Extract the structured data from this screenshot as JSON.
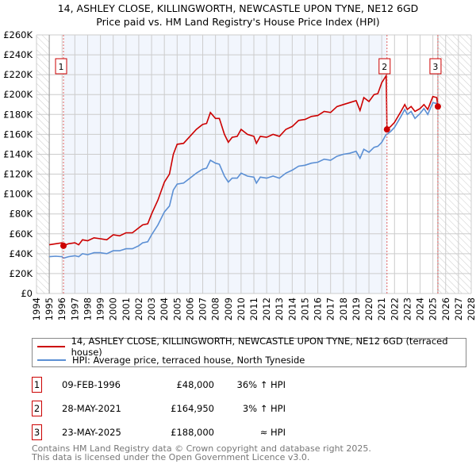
{
  "chart_data": {
    "type": "line",
    "title": "14, ASHLEY CLOSE, KILLINGWORTH, NEWCASTLE UPON TYNE, NE12 6GD",
    "subtitle": "Price paid vs. HM Land Registry's House Price Index (HPI)",
    "xlim": [
      1994,
      2028
    ],
    "ylim": [
      0,
      260000
    ],
    "x_ticks": [
      "1994",
      "1995",
      "1996",
      "1997",
      "1998",
      "1999",
      "2000",
      "2001",
      "2002",
      "2003",
      "2004",
      "2005",
      "2006",
      "2007",
      "2008",
      "2009",
      "2010",
      "2011",
      "2012",
      "2013",
      "2014",
      "2015",
      "2016",
      "2017",
      "2018",
      "2019",
      "2020",
      "2021",
      "2022",
      "2023",
      "2024",
      "2025",
      "2026",
      "2027",
      "2028"
    ],
    "y_ticks": [
      {
        "v": 0,
        "label": "£0"
      },
      {
        "v": 20000,
        "label": "£20K"
      },
      {
        "v": 40000,
        "label": "£40K"
      },
      {
        "v": 60000,
        "label": "£60K"
      },
      {
        "v": 80000,
        "label": "£80K"
      },
      {
        "v": 100000,
        "label": "£100K"
      },
      {
        "v": 120000,
        "label": "£120K"
      },
      {
        "v": 140000,
        "label": "£140K"
      },
      {
        "v": 160000,
        "label": "£160K"
      },
      {
        "v": 180000,
        "label": "£180K"
      },
      {
        "v": 200000,
        "label": "£200K"
      },
      {
        "v": 220000,
        "label": "£220K"
      },
      {
        "v": 240000,
        "label": "£240K"
      },
      {
        "v": 260000,
        "label": "£260K"
      }
    ],
    "grid": true,
    "series": [
      {
        "name": "14, ASHLEY CLOSE, KILLINGWORTH, NEWCASTLE UPON TYNE, NE12 6GD (terraced house)",
        "color": "#cc0000",
        "x": [
          1995,
          1995.5,
          1996,
          1996.11,
          1996.5,
          1997,
          1997.3,
          1997.6,
          1998,
          1998.5,
          1999,
          1999.5,
          2000,
          2000.5,
          2001,
          2001.5,
          2002,
          2002.3,
          2002.7,
          2003,
          2003.5,
          2004,
          2004.4,
          2004.7,
          2005,
          2005.5,
          2006,
          2006.5,
          2007,
          2007.3,
          2007.6,
          2008,
          2008.3,
          2008.7,
          2009,
          2009.3,
          2009.7,
          2010,
          2010.5,
          2011,
          2011.2,
          2011.5,
          2012,
          2012.5,
          2013,
          2013.5,
          2014,
          2014.5,
          2015,
          2015.5,
          2016,
          2016.5,
          2017,
          2017.5,
          2018,
          2018.5,
          2019,
          2019.3,
          2019.6,
          2020,
          2020.4,
          2020.7,
          2021,
          2021.35,
          2021.41,
          2021.7,
          2022,
          2022.5,
          2022.8,
          2023,
          2023.3,
          2023.6,
          2024,
          2024.3,
          2024.6,
          2025,
          2025.3,
          2025.39
        ],
        "y": [
          49000,
          50000,
          51000,
          48000,
          50000,
          51000,
          49000,
          54000,
          53000,
          56000,
          55000,
          54000,
          59000,
          58000,
          61000,
          61000,
          66000,
          69000,
          70000,
          80000,
          94000,
          112000,
          120000,
          140000,
          150000,
          151000,
          158000,
          165000,
          170000,
          171000,
          182000,
          176000,
          176000,
          160000,
          152000,
          157000,
          158000,
          165000,
          160000,
          158000,
          151000,
          158000,
          157000,
          160000,
          158000,
          165000,
          168000,
          174000,
          175000,
          178000,
          179000,
          183000,
          182000,
          188000,
          190000,
          192000,
          194000,
          184000,
          197000,
          193000,
          200000,
          201000,
          212000,
          219000,
          164950,
          168000,
          172000,
          183000,
          190000,
          185000,
          188000,
          183000,
          186000,
          190000,
          185000,
          198000,
          197000,
          188000
        ]
      },
      {
        "name": "HPI: Average price, terraced house, North Tyneside",
        "color": "#5b8fd4",
        "x": [
          1995,
          1995.5,
          1996,
          1996.11,
          1996.5,
          1997,
          1997.3,
          1997.6,
          1998,
          1998.5,
          1999,
          1999.5,
          2000,
          2000.5,
          2001,
          2001.5,
          2002,
          2002.3,
          2002.7,
          2003,
          2003.5,
          2004,
          2004.4,
          2004.7,
          2005,
          2005.5,
          2006,
          2006.5,
          2007,
          2007.3,
          2007.6,
          2008,
          2008.3,
          2008.7,
          2009,
          2009.3,
          2009.7,
          2010,
          2010.5,
          2011,
          2011.2,
          2011.5,
          2012,
          2012.5,
          2013,
          2013.5,
          2014,
          2014.5,
          2015,
          2015.5,
          2016,
          2016.5,
          2017,
          2017.5,
          2018,
          2018.5,
          2019,
          2019.3,
          2019.6,
          2020,
          2020.4,
          2020.7,
          2021,
          2021.35,
          2021.41,
          2021.7,
          2022,
          2022.5,
          2022.8,
          2023,
          2023.3,
          2023.6,
          2024,
          2024.3,
          2024.6,
          2025,
          2025.3,
          2025.39
        ],
        "y": [
          37000,
          37500,
          37000,
          35500,
          37000,
          38000,
          37000,
          40000,
          39000,
          41000,
          41000,
          40000,
          43000,
          43000,
          45000,
          45000,
          48000,
          51000,
          52000,
          59000,
          69000,
          82000,
          88000,
          104000,
          110000,
          111000,
          116000,
          121000,
          125000,
          126000,
          134000,
          131000,
          130000,
          118000,
          112000,
          116000,
          116000,
          121000,
          118000,
          117000,
          111000,
          117000,
          116000,
          118000,
          116000,
          121000,
          124000,
          128000,
          129000,
          131000,
          132000,
          135000,
          134000,
          138000,
          140000,
          141000,
          143000,
          136000,
          145000,
          142000,
          147000,
          148000,
          152000,
          160000,
          160000,
          163000,
          167000,
          178000,
          185000,
          180000,
          183000,
          176000,
          181000,
          186000,
          180000,
          192000,
          191000,
          189000
        ]
      }
    ],
    "shaded_from": 1996.11,
    "shaded_to": 2021.41,
    "hatch_before": 1995,
    "hatch_after": 2025.39,
    "sales": [
      {
        "id": "1",
        "x": 1996.11,
        "y": 48000,
        "date": "09-FEB-1996",
        "price": "£48,000",
        "hpi": "36% ↑ HPI"
      },
      {
        "id": "2",
        "x": 2021.41,
        "y": 164950,
        "date": "28-MAY-2021",
        "price": "£164,950",
        "hpi": "3% ↑ HPI"
      },
      {
        "id": "3",
        "x": 2025.39,
        "y": 188000,
        "date": "23-MAY-2025",
        "price": "£188,000",
        "hpi": "≈ HPI"
      }
    ],
    "footer": [
      "Contains HM Land Registry data © Crown copyright and database right 2025.",
      "This data is licensed under the Open Government Licence v3.0."
    ]
  }
}
